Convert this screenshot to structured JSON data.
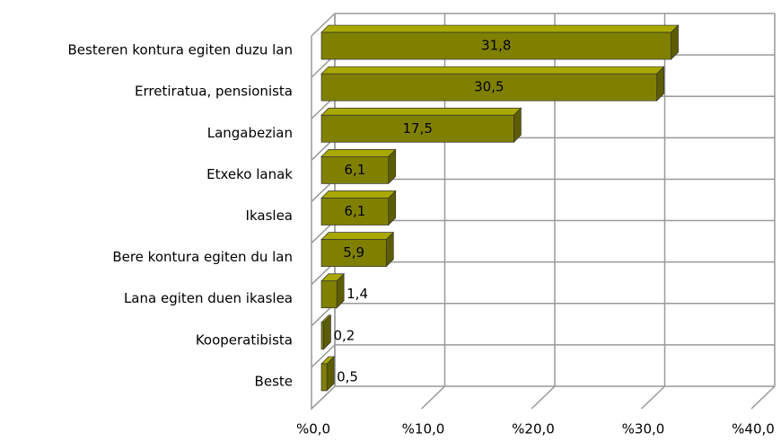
{
  "chart_data": {
    "type": "bar",
    "orientation": "horizontal",
    "categories": [
      "Besteren kontura egiten duzu lan",
      "Erretiratua, pensionista",
      "Langabezian",
      "Etxeko lanak",
      "Ikaslea",
      "Bere kontura egiten du lan",
      "Lana egiten duen ikaslea",
      "Kooperatibista",
      "Beste"
    ],
    "values": [
      31.8,
      30.5,
      17.5,
      6.1,
      6.1,
      5.9,
      1.4,
      0.2,
      0.5
    ],
    "value_labels": [
      "31,8",
      "30,5",
      "17,5",
      "6,1",
      "6,1",
      "5,9",
      "1,4",
      "0,2",
      "0,5"
    ],
    "color": "#808000",
    "xlim": [
      0,
      40
    ],
    "xticks": [
      {
        "value": 0,
        "label": "%0,0"
      },
      {
        "value": 10,
        "label": "%10,0"
      },
      {
        "value": 20,
        "label": "%20,0"
      },
      {
        "value": 30,
        "label": "%30,0"
      },
      {
        "value": 40,
        "label": "%40,0"
      }
    ],
    "grid": true
  }
}
